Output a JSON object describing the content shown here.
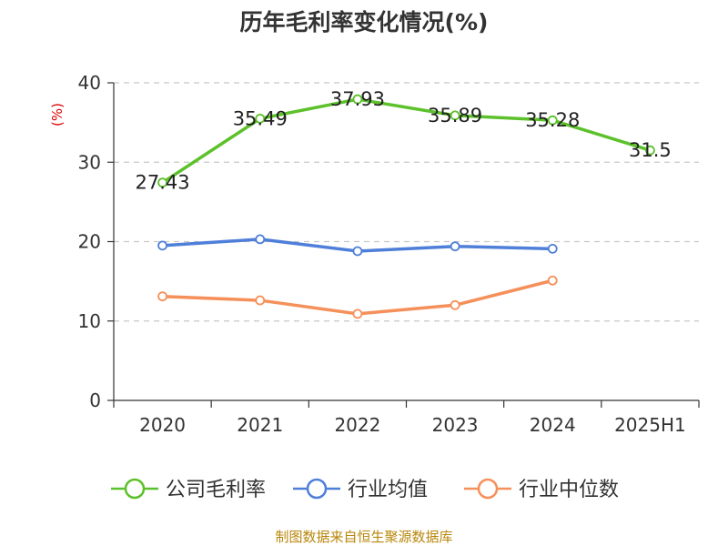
{
  "chart_data": {
    "type": "line",
    "title": "历年毛利率变化情况(%)",
    "ylabel": "(%)",
    "ylim": [
      0,
      40
    ],
    "yticks": [
      0,
      10,
      20,
      30,
      40
    ],
    "categories": [
      "2020",
      "2021",
      "2022",
      "2023",
      "2024",
      "2025H1"
    ],
    "grid": true,
    "legend_position": "bottom",
    "series": [
      {
        "name": "公司毛利率",
        "color": "#5cc12a",
        "values": [
          27.43,
          35.49,
          37.93,
          35.89,
          35.28,
          31.5
        ],
        "labels": [
          "27.43",
          "35.49",
          "37.93",
          "35.89",
          "35.28",
          "31.5"
        ]
      },
      {
        "name": "行业均值",
        "color": "#4f7fd9",
        "values": [
          19.5,
          20.3,
          18.8,
          19.4,
          19.1,
          null
        ]
      },
      {
        "name": "行业中位数",
        "color": "#f5905a",
        "values": [
          13.1,
          12.6,
          10.9,
          12.0,
          15.1,
          null
        ]
      }
    ],
    "source": "制图数据来自恒生聚源数据库"
  }
}
